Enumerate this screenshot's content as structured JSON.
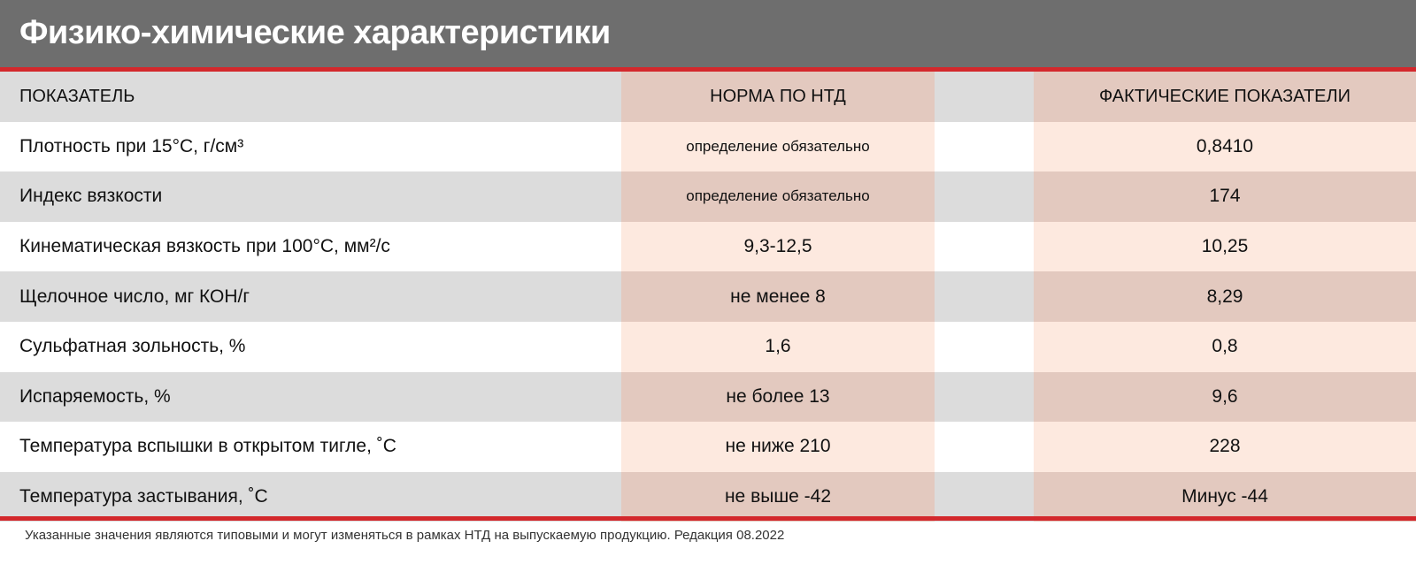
{
  "title": "Физико-химические характеристики",
  "columns": [
    "ПОКАЗАТЕЛЬ",
    "НОРМА ПО НТД",
    "ФАКТИЧЕСКИЕ ПОКАЗАТЕЛИ"
  ],
  "rows": [
    {
      "name": "Плотность при 15°С, г/см³",
      "norm": "определение обязательно",
      "actual": "0,8410"
    },
    {
      "name": "Индекс вязкости",
      "norm": "определение обязательно",
      "actual": "174"
    },
    {
      "name": "Кинематическая вязкость при 100°С, мм²/с",
      "norm": "9,3-12,5",
      "actual": "10,25"
    },
    {
      "name": "Щелочное число, мг КОН/г",
      "norm": "не менее 8",
      "actual": "8,29"
    },
    {
      "name": "Сульфатная зольность, %",
      "norm": "1,6",
      "actual": "0,8"
    },
    {
      "name": "Испаряемость, %",
      "norm": "не более 13",
      "actual": "9,6"
    },
    {
      "name": "Температура вспышки в открытом тигле, ˚С",
      "norm": "не ниже 210",
      "actual": "228"
    },
    {
      "name": "Температура застывания, ˚С",
      "norm": "не выше -42",
      "actual": "Минус -44"
    }
  ],
  "footnote": "Указанные значения являются типовыми и могут изменяться в рамках НТД на выпускаемую продукцию. Редакция 08.2022",
  "colors": {
    "header": "#6e6e6e",
    "accent": "#d3282c",
    "row_gray": "#dcdcdc",
    "tint_dark": "#e3c9bf",
    "tint_light": "#fde9df"
  }
}
